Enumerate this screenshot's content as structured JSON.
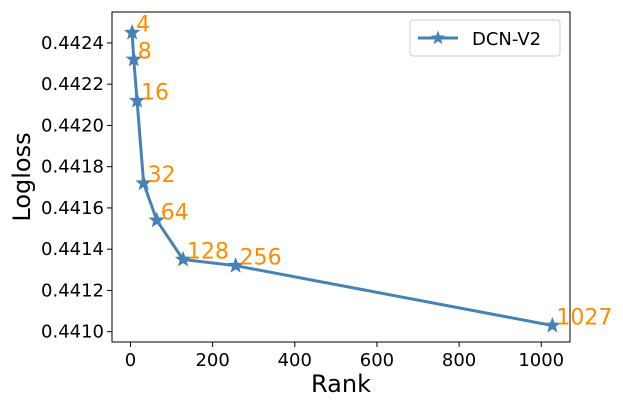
{
  "chart_data": {
    "type": "line",
    "xlabel": "Rank",
    "ylabel": "Logloss",
    "xlim": [
      -45,
      1070
    ],
    "ylim": [
      0.44095,
      0.44255
    ],
    "xticks": [
      0,
      200,
      400,
      600,
      800,
      1000
    ],
    "yticks": [
      0.441,
      0.4412,
      0.4414,
      0.4416,
      0.4418,
      0.442,
      0.4422,
      0.4424
    ],
    "grid": false,
    "legend_position": "top-right",
    "series": [
      {
        "name": "DCN-V2",
        "color": "#4682b4",
        "marker": "star",
        "x": [
          4,
          8,
          16,
          32,
          64,
          128,
          256,
          1027
        ],
        "y": [
          0.44245,
          0.44232,
          0.44212,
          0.44172,
          0.44154,
          0.44135,
          0.44132,
          0.44103
        ],
        "point_labels": [
          "4",
          "8",
          "16",
          "32",
          "64",
          "128",
          "256",
          "1027"
        ]
      }
    ],
    "label_color": "#ff8c00"
  }
}
